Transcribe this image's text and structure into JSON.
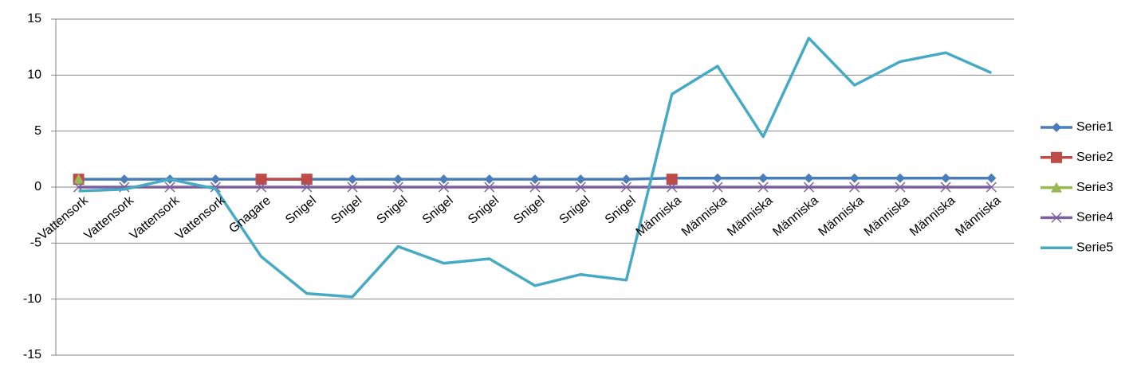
{
  "chart_data": {
    "type": "line",
    "categories": [
      "Vattensork",
      "Vattensork",
      "Vattensork",
      "Vattensork",
      "Gnagare",
      "Snigel",
      "Snigel",
      "Snigel",
      "Snigel",
      "Snigel",
      "Snigel",
      "Snigel",
      "Snigel",
      "Människa",
      "Människa",
      "Människa",
      "Människa",
      "Människa",
      "Människa",
      "Människa",
      "Människa"
    ],
    "series": [
      {
        "name": "Serie1",
        "color": "#4a7ebb",
        "marker": "diamond",
        "values": [
          0.7,
          0.7,
          0.7,
          0.7,
          0.7,
          0.7,
          0.7,
          0.7,
          0.7,
          0.7,
          0.7,
          0.7,
          0.7,
          0.8,
          0.8,
          0.8,
          0.8,
          0.8,
          0.8,
          0.8,
          0.8
        ]
      },
      {
        "name": "Serie2",
        "color": "#be4b48",
        "marker": "square",
        "values": [
          0.7,
          null,
          null,
          null,
          0.7,
          0.7,
          null,
          null,
          null,
          null,
          null,
          null,
          null,
          0.7,
          null,
          null,
          null,
          null,
          null,
          null,
          null
        ]
      },
      {
        "name": "Serie3",
        "color": "#98b954",
        "marker": "triangle",
        "values": [
          0.7,
          null,
          null,
          null,
          null,
          null,
          null,
          null,
          null,
          null,
          null,
          null,
          null,
          null,
          null,
          null,
          null,
          null,
          null,
          null,
          null
        ]
      },
      {
        "name": "Serie4",
        "color": "#7d60a0",
        "marker": "x",
        "values": [
          0,
          0,
          0,
          0,
          0,
          0,
          0,
          0,
          0,
          0,
          0,
          0,
          0,
          0,
          0,
          0,
          0,
          0,
          0,
          0,
          0
        ]
      },
      {
        "name": "Serie5",
        "color": "#46aac5",
        "marker": "none",
        "values": [
          -0.35,
          -0.2,
          0.7,
          -0.15,
          -6.2,
          -9.5,
          -9.8,
          -5.3,
          -6.8,
          -6.4,
          -8.8,
          -7.8,
          -8.3,
          8.3,
          10.8,
          4.5,
          13.3,
          9.1,
          11.2,
          12.0,
          10.2
        ]
      }
    ],
    "ylim": [
      -15,
      15
    ],
    "yticks": [
      -15,
      -10,
      -5,
      0,
      5,
      10,
      15
    ],
    "grid": true,
    "legend": "right"
  }
}
